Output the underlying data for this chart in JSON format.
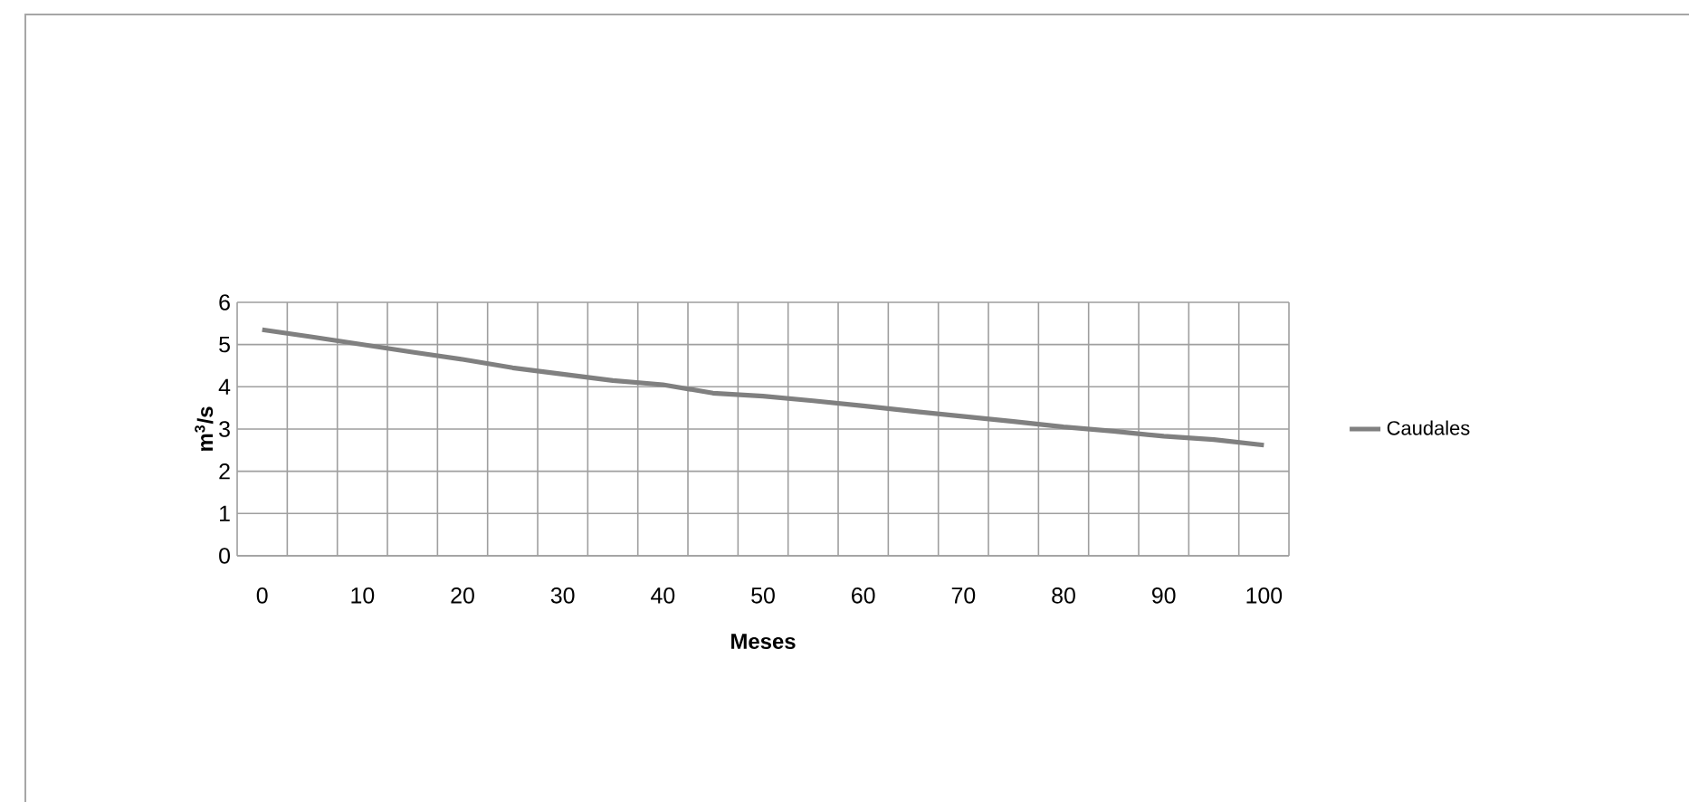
{
  "chart_data": {
    "type": "line",
    "xlabel": "Meses",
    "ylabel": "m$^{3}$/s",
    "categories": [
      "0",
      null,
      "10",
      null,
      "20",
      null,
      "30",
      null,
      "40",
      null,
      "50",
      null,
      "60",
      null,
      "70",
      null,
      "80",
      null,
      "90",
      null,
      "100"
    ],
    "series": [
      {
        "name": "Caudales",
        "color": "#808080",
        "values": [
          5.35,
          5.18,
          5.0,
          4.82,
          4.65,
          4.45,
          4.3,
          4.15,
          4.05,
          3.85,
          3.78,
          3.67,
          3.55,
          3.42,
          3.3,
          3.18,
          3.05,
          2.95,
          2.83,
          2.75,
          2.62
        ]
      }
    ],
    "ylim": [
      0,
      6
    ],
    "yticks": [
      0,
      1,
      2,
      3,
      4,
      5,
      6
    ],
    "grid": true,
    "legend": "right",
    "marker": "none",
    "line_style": "solid"
  }
}
